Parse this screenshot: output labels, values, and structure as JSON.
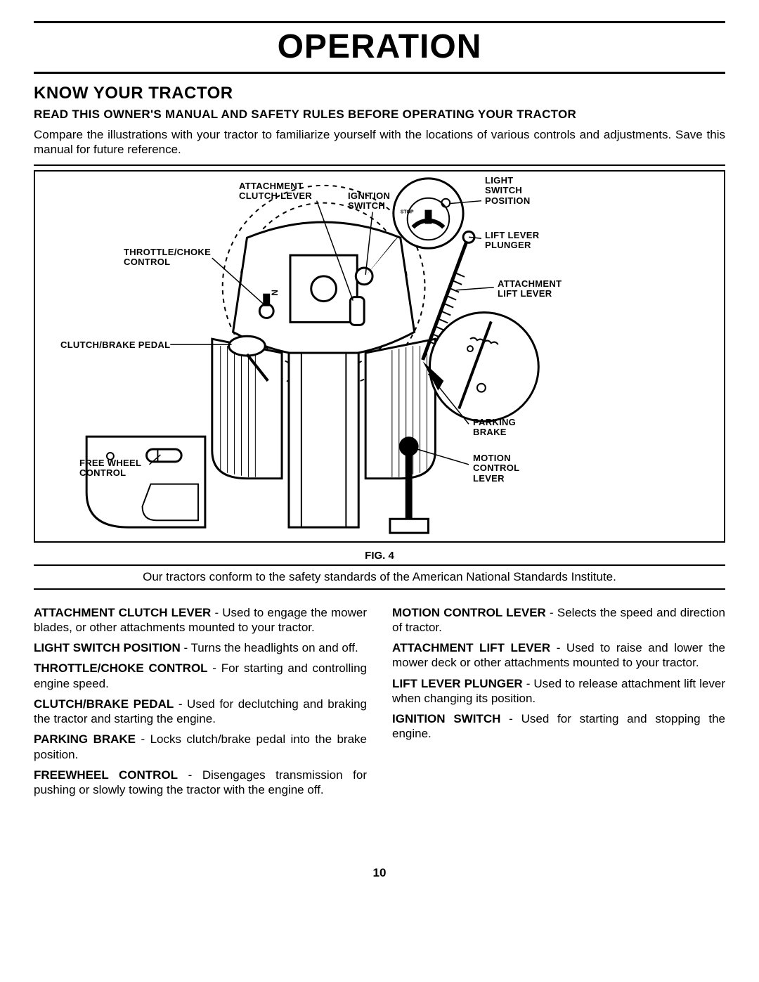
{
  "title": "OPERATION",
  "section": "KNOW YOUR TRACTOR",
  "warning": "READ THIS OWNER'S MANUAL AND SAFETY RULES BEFORE OPERATING YOUR TRACTOR",
  "intro": "Compare the illustrations with your tractor to familiarize yourself with the locations of various controls and adjustments. Save this manual for future reference.",
  "figure": {
    "caption": "FIG. 4",
    "callouts": {
      "attachment_clutch_lever": "ATTACHMENT CLUTCH LEVER",
      "ignition_switch": "IGNITION SWITCH",
      "light_switch_position": "LIGHT SWITCH POSITION",
      "lift_lever_plunger": "LIFT LEVER PLUNGER",
      "throttle_choke_control": "THROTTLE/CHOKE CONTROL",
      "attachment_lift_lever": "ATTACHMENT LIFT LEVER",
      "clutch_brake_pedal": "CLUTCH/BRAKE PEDAL",
      "parking_brake": "PARKING BRAKE",
      "free_wheel_control": "FREE WHEEL CONTROL",
      "motion_control_lever": "MOTION CONTROL LEVER"
    }
  },
  "safety_note": "Our tractors conform to the safety standards of the American National Standards Institute.",
  "definitions": {
    "left": [
      {
        "term": "ATTACHMENT CLUTCH LEVER",
        "desc": " - Used to engage the mower blades, or other attachments mounted to your tractor."
      },
      {
        "term": "LIGHT SWITCH POSITION",
        "desc": " - Turns the headlights on and off."
      },
      {
        "term": "THROTTLE/CHOKE CONTROL",
        "desc": " -  For starting and controlling engine speed."
      },
      {
        "term": "CLUTCH/BRAKE PEDAL",
        "desc": " - Used for declutching and braking the tractor and starting the engine."
      },
      {
        "term": "PARKING BRAKE",
        "desc": " - Locks clutch/brake pedal into the brake position."
      },
      {
        "term": "FREEWHEEL CONTROL",
        "desc": " - Disengages transmission for pushing or slowly towing the tractor with the engine off."
      }
    ],
    "right": [
      {
        "term": "MOTION CONTROL LEVER",
        "desc": " - Selects the speed and direction of tractor."
      },
      {
        "term": "ATTACHMENT LIFT LEVER",
        "desc": " - Used to raise and lower the mower deck or other attachments mounted to your tractor."
      },
      {
        "term": "LIFT LEVER PLUNGER",
        "desc": " - Used to release attachment lift lever when changing its position."
      },
      {
        "term": "IGNITION SWITCH",
        "desc": " - Used for starting and stopping the engine."
      }
    ]
  },
  "page_number": "10",
  "colors": {
    "fg": "#000000",
    "bg": "#ffffff"
  }
}
